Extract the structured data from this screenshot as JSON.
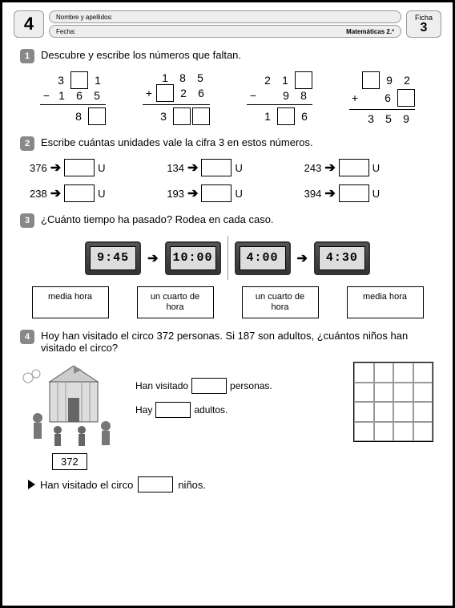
{
  "header": {
    "page_num": "4",
    "name_label": "Nombre y apellidos:",
    "date_label": "Fecha:",
    "subject": "Matemáticas 2.º",
    "ficha_label": "Ficha",
    "ficha_num": "3"
  },
  "ex1": {
    "badge": "1",
    "title": "Descubre y escribe los números que faltan.",
    "ops": [
      {
        "sign": "−",
        "r1": [
          "3",
          "?",
          "1"
        ],
        "r2": [
          "1",
          "6",
          "5"
        ],
        "res": [
          "",
          "8",
          "?"
        ]
      },
      {
        "sign": "+",
        "r1": [
          "1",
          "8",
          "5"
        ],
        "r2": [
          "?",
          "2",
          "6"
        ],
        "res": [
          "3",
          "?",
          "?"
        ]
      },
      {
        "sign": "−",
        "r1": [
          "2",
          "1",
          "?"
        ],
        "r2": [
          "",
          "9",
          "8"
        ],
        "res": [
          "1",
          "?",
          "6"
        ]
      },
      {
        "sign": "+",
        "r1": [
          "?",
          "9",
          "2"
        ],
        "r2": [
          "",
          "6",
          "?"
        ],
        "res": [
          "3",
          "5",
          "9"
        ]
      }
    ]
  },
  "ex2": {
    "badge": "2",
    "title": "Escribe cuántas unidades vale la cifra 3 en estos números.",
    "unit": "U",
    "nums": [
      "376",
      "134",
      "243",
      "238",
      "193",
      "394"
    ]
  },
  "ex3": {
    "badge": "3",
    "title": "¿Cuánto tiempo ha pasado? Rodea en cada caso.",
    "clocks": [
      "9:45",
      "10:00",
      "4:00",
      "4:30"
    ],
    "choices": [
      "media hora",
      "un cuarto de hora",
      "un cuarto de hora",
      "media hora"
    ]
  },
  "ex4": {
    "badge": "4",
    "title": "Hoy han visitado el circo 372 personas. Si 187 son adultos, ¿cuántos niños han visitado el circo?",
    "l1a": "Han visitado",
    "l1b": "personas.",
    "l2a": "Hay",
    "l2b": "adultos.",
    "given": "372",
    "final_a": "Han visitado el circo",
    "final_b": "niños."
  },
  "colors": {
    "badge_bg": "#888888",
    "border": "#000000",
    "header_bg": "#eeeeee"
  }
}
